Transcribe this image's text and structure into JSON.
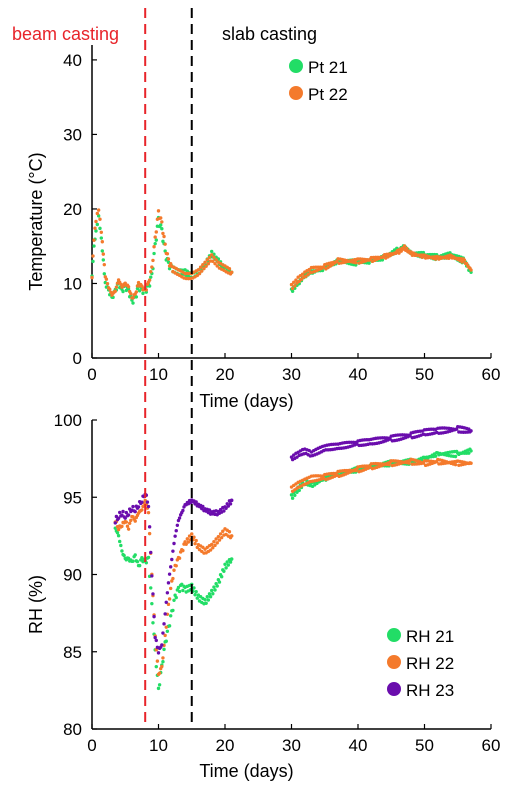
{
  "annotations": {
    "beam_casting": "beam casting",
    "slab_casting": "slab casting",
    "beam_color": "#e8242a",
    "slab_color": "#000000",
    "beam_day": 8,
    "slab_day": 15
  },
  "colors": {
    "green": "#22dd66",
    "orange": "#f47a2c",
    "purple": "#6a0dad"
  },
  "chart_data": [
    {
      "type": "scatter",
      "title": "",
      "xlabel": "Time (days)",
      "ylabel": "Temperature (°C)",
      "xlim": [
        0,
        60
      ],
      "ylim": [
        0,
        42
      ],
      "xticks": [
        "0",
        "10",
        "20",
        "30",
        "40",
        "50",
        "60"
      ],
      "yticks": [
        "0",
        "10",
        "20",
        "30",
        "40"
      ],
      "legend_position": "top-right",
      "series": [
        {
          "name": "Pt 21",
          "color": "#22dd66",
          "points": [
            [
              0,
              11
            ],
            [
              0.3,
              15
            ],
            [
              0.6,
              17
            ],
            [
              1,
              19
            ],
            [
              1.4,
              16
            ],
            [
              2,
              10
            ],
            [
              2.5,
              9
            ],
            [
              3,
              8
            ],
            [
              3.5,
              9
            ],
            [
              4,
              10
            ],
            [
              4.5,
              9
            ],
            [
              5,
              9.5
            ],
            [
              5.5,
              9
            ],
            [
              6,
              7.5
            ],
            [
              6.5,
              8
            ],
            [
              7,
              9.5
            ],
            [
              7.5,
              9
            ],
            [
              8,
              9
            ],
            [
              8.5,
              9.5
            ],
            [
              9,
              11
            ],
            [
              9.5,
              15
            ],
            [
              10,
              18.5
            ],
            [
              10.5,
              17
            ],
            [
              11,
              14
            ],
            [
              11.5,
              12.5
            ],
            [
              12,
              12
            ],
            [
              13,
              11.5
            ],
            [
              14,
              11.5
            ],
            [
              15,
              11
            ],
            [
              16,
              11.5
            ],
            [
              17,
              12.5
            ],
            [
              18,
              14
            ],
            [
              19,
              13
            ],
            [
              20,
              12
            ],
            [
              21,
              11.5
            ],
            [
              30,
              9
            ],
            [
              31,
              10
            ],
            [
              32,
              11
            ],
            [
              33,
              11.5
            ],
            [
              35,
              12
            ],
            [
              37,
              13
            ],
            [
              40,
              12.8
            ],
            [
              42,
              13
            ],
            [
              44,
              13.5
            ],
            [
              46,
              14.5
            ],
            [
              47,
              15
            ],
            [
              48,
              14
            ],
            [
              50,
              13.8
            ],
            [
              52,
              13.5
            ],
            [
              54,
              13.8
            ],
            [
              56,
              13
            ],
            [
              57,
              11.5
            ]
          ]
        },
        {
          "name": "Pt 22",
          "color": "#f47a2c",
          "points": [
            [
              0,
              11
            ],
            [
              0.3,
              16
            ],
            [
              0.6,
              18.5
            ],
            [
              1,
              20
            ],
            [
              1.4,
              17
            ],
            [
              2,
              11
            ],
            [
              2.5,
              9.5
            ],
            [
              3,
              8.5
            ],
            [
              3.5,
              9
            ],
            [
              4,
              10.5
            ],
            [
              4.5,
              9.5
            ],
            [
              5,
              10
            ],
            [
              5.5,
              9.5
            ],
            [
              6,
              8
            ],
            [
              6.5,
              8.5
            ],
            [
              7,
              10
            ],
            [
              7.5,
              9.5
            ],
            [
              8,
              9
            ],
            [
              8.5,
              10
            ],
            [
              9,
              12
            ],
            [
              9.5,
              16
            ],
            [
              10,
              19.5
            ],
            [
              10.5,
              18
            ],
            [
              11,
              15
            ],
            [
              11.5,
              13
            ],
            [
              12,
              12
            ],
            [
              13,
              11.5
            ],
            [
              14,
              11
            ],
            [
              15,
              11
            ],
            [
              16,
              11.5
            ],
            [
              17,
              12.5
            ],
            [
              18,
              13.5
            ],
            [
              19,
              12.5
            ],
            [
              20,
              12
            ],
            [
              21,
              11.5
            ],
            [
              30,
              9.5
            ],
            [
              31,
              10.5
            ],
            [
              32,
              11.2
            ],
            [
              33,
              11.8
            ],
            [
              35,
              12.2
            ],
            [
              37,
              13
            ],
            [
              40,
              13
            ],
            [
              42,
              13.2
            ],
            [
              44,
              13.6
            ],
            [
              46,
              14.2
            ],
            [
              47,
              14.8
            ],
            [
              48,
              14
            ],
            [
              50,
              13.6
            ],
            [
              52,
              13.4
            ],
            [
              54,
              13.6
            ],
            [
              56,
              13
            ],
            [
              57,
              11.8
            ]
          ]
        }
      ]
    },
    {
      "type": "scatter",
      "title": "",
      "xlabel": "Time (days)",
      "ylabel": "RH (%)",
      "xlim": [
        0,
        60
      ],
      "ylim": [
        80,
        100
      ],
      "xticks": [
        "0",
        "10",
        "20",
        "30",
        "40",
        "50",
        "60"
      ],
      "yticks": [
        "80",
        "85",
        "90",
        "95",
        "100"
      ],
      "legend_position": "bottom-right",
      "series": [
        {
          "name": "RH 21",
          "color": "#22dd66",
          "points": [
            [
              3.5,
              93
            ],
            [
              4,
              92.5
            ],
            [
              4.5,
              91.5
            ],
            [
              5,
              91
            ],
            [
              5.5,
              91
            ],
            [
              6,
              90.8
            ],
            [
              6.5,
              91.2
            ],
            [
              7,
              90.5
            ],
            [
              7.5,
              91
            ],
            [
              8,
              90.8
            ],
            [
              8.5,
              91
            ],
            [
              9,
              88
            ],
            [
              9.5,
              85
            ],
            [
              10,
              82.5
            ],
            [
              10.5,
              84
            ],
            [
              11,
              85.5
            ],
            [
              11.5,
              86.5
            ],
            [
              12,
              87.5
            ],
            [
              12.5,
              88.5
            ],
            [
              13,
              89
            ],
            [
              13.5,
              89.2
            ],
            [
              14,
              89
            ],
            [
              15,
              89.2
            ],
            [
              16,
              88.5
            ],
            [
              17,
              88.2
            ],
            [
              18,
              88.8
            ],
            [
              19,
              89.5
            ],
            [
              20,
              90.5
            ],
            [
              21,
              91
            ],
            [
              30,
              95
            ],
            [
              31,
              95.5
            ],
            [
              32,
              96
            ],
            [
              33,
              95.8
            ],
            [
              35,
              96.2
            ],
            [
              37,
              96.5
            ],
            [
              40,
              96.8
            ],
            [
              42,
              97
            ],
            [
              45,
              97.2
            ],
            [
              48,
              97.3
            ],
            [
              50,
              97.5
            ],
            [
              52,
              97.8
            ],
            [
              55,
              97.8
            ],
            [
              57,
              98
            ]
          ]
        },
        {
          "name": "RH 22",
          "color": "#f47a2c",
          "points": [
            [
              3.5,
              93.5
            ],
            [
              4,
              93
            ],
            [
              4.5,
              93.2
            ],
            [
              5,
              93.5
            ],
            [
              5.5,
              93
            ],
            [
              6,
              93.8
            ],
            [
              6.5,
              93.5
            ],
            [
              7,
              94
            ],
            [
              7.5,
              94.2
            ],
            [
              8,
              94.8
            ],
            [
              8.5,
              94
            ],
            [
              9,
              90
            ],
            [
              9.5,
              86
            ],
            [
              10,
              83.5
            ],
            [
              10.5,
              84
            ],
            [
              11,
              86
            ],
            [
              11.5,
              88
            ],
            [
              12,
              89.5
            ],
            [
              12.5,
              90.5
            ],
            [
              13,
              91
            ],
            [
              13.5,
              91.5
            ],
            [
              14,
              92
            ],
            [
              15,
              92.5
            ],
            [
              16,
              91.8
            ],
            [
              17,
              91.5
            ],
            [
              18,
              91.8
            ],
            [
              19,
              92.3
            ],
            [
              20,
              92.8
            ],
            [
              21,
              92.5
            ],
            [
              30,
              95.5
            ],
            [
              31,
              95.8
            ],
            [
              32,
              96
            ],
            [
              33,
              96.2
            ],
            [
              35,
              96.3
            ],
            [
              37,
              96.5
            ],
            [
              40,
              96.8
            ],
            [
              42,
              97
            ],
            [
              45,
              97.2
            ],
            [
              48,
              97.3
            ],
            [
              50,
              97.2
            ],
            [
              52,
              97.3
            ],
            [
              55,
              97.2
            ],
            [
              57,
              97.2
            ]
          ]
        },
        {
          "name": "RH 23",
          "color": "#6a0dad",
          "points": [
            [
              3.5,
              93.5
            ],
            [
              4,
              93.8
            ],
            [
              4.5,
              94
            ],
            [
              5,
              93.8
            ],
            [
              5.5,
              94
            ],
            [
              6,
              94.3
            ],
            [
              6.5,
              94.2
            ],
            [
              7,
              94.5
            ],
            [
              7.5,
              94.8
            ],
            [
              8,
              95.3
            ],
            [
              8.5,
              94.5
            ],
            [
              9,
              90
            ],
            [
              9.5,
              86
            ],
            [
              10,
              85
            ],
            [
              10.5,
              85.5
            ],
            [
              11,
              87.5
            ],
            [
              11.5,
              89.5
            ],
            [
              12,
              91
            ],
            [
              12.5,
              92.5
            ],
            [
              13,
              93.5
            ],
            [
              13.5,
              94
            ],
            [
              14,
              94.5
            ],
            [
              15,
              94.8
            ],
            [
              16,
              94.5
            ],
            [
              17,
              94.2
            ],
            [
              18,
              94
            ],
            [
              19,
              94
            ],
            [
              20,
              94.3
            ],
            [
              21,
              94.8
            ],
            [
              30,
              97.5
            ],
            [
              31,
              97.8
            ],
            [
              32,
              98
            ],
            [
              33,
              97.8
            ],
            [
              35,
              98.2
            ],
            [
              37,
              98.3
            ],
            [
              40,
              98.5
            ],
            [
              42,
              98.6
            ],
            [
              45,
              98.8
            ],
            [
              48,
              99
            ],
            [
              50,
              99.2
            ],
            [
              52,
              99.3
            ],
            [
              55,
              99.4
            ],
            [
              57,
              99.3
            ]
          ]
        }
      ]
    }
  ]
}
